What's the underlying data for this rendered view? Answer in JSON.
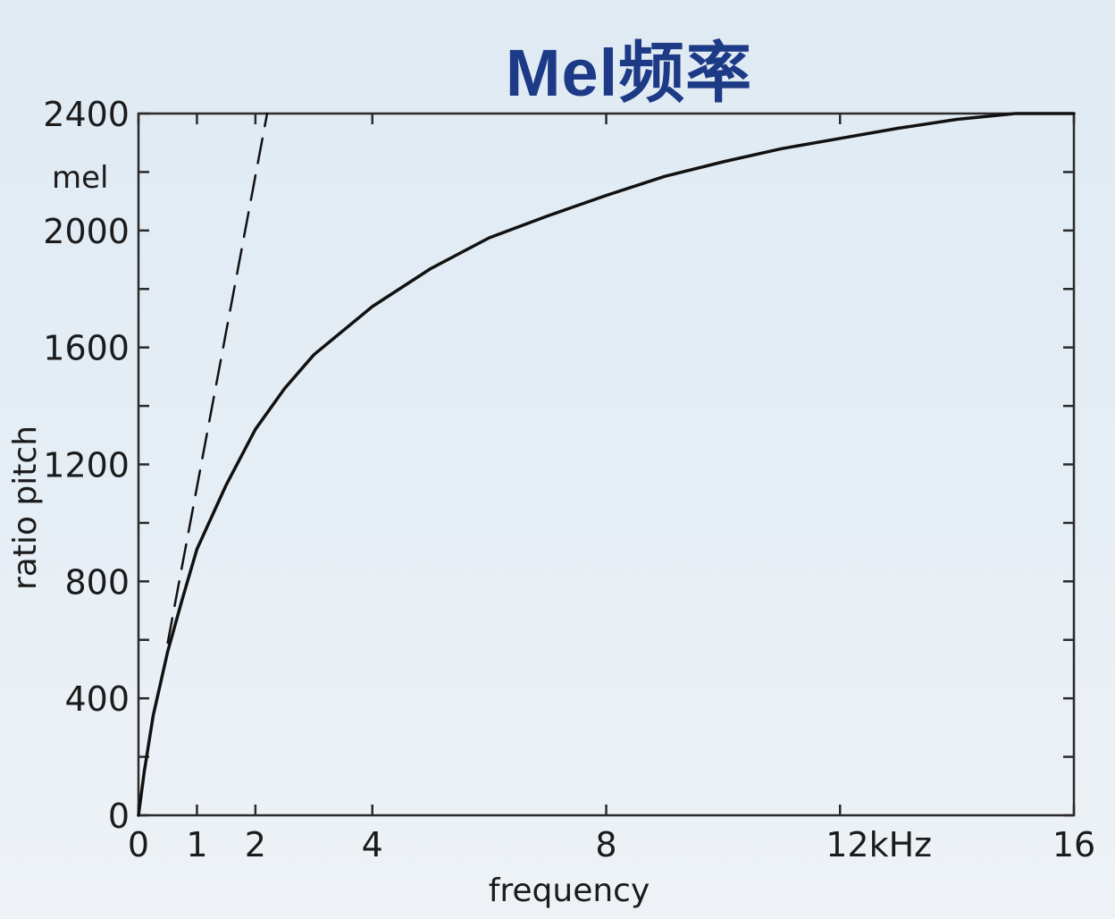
{
  "slide": {
    "title": "Mel频率"
  },
  "chart_data": {
    "type": "line",
    "xlabel": "frequency",
    "ylabel": "ratio pitch",
    "y_unit": "mel",
    "x_unit": "kHz",
    "xlim": [
      0,
      16
    ],
    "ylim": [
      0,
      2400
    ],
    "x_ticks": [
      {
        "value": 0,
        "label": "0"
      },
      {
        "value": 1,
        "label": "1"
      },
      {
        "value": 2,
        "label": "2"
      },
      {
        "value": 4,
        "label": "4"
      },
      {
        "value": 8,
        "label": "8"
      },
      {
        "value": 12,
        "label": "12kHz"
      },
      {
        "value": 16,
        "label": "16"
      }
    ],
    "y_ticks": [
      {
        "value": 0,
        "label": "0"
      },
      {
        "value": 400,
        "label": "400"
      },
      {
        "value": 800,
        "label": "800"
      },
      {
        "value": 1200,
        "label": "1200"
      },
      {
        "value": 1600,
        "label": "1600"
      },
      {
        "value": 2000,
        "label": "2000"
      },
      {
        "value": 2400,
        "label": "2400"
      }
    ],
    "series": [
      {
        "style": "solid",
        "x": [
          0,
          0.1,
          0.25,
          0.5,
          0.75,
          1,
          1.5,
          2,
          2.5,
          3,
          4,
          5,
          6,
          7,
          8,
          9,
          10,
          11,
          12,
          13,
          14,
          15,
          16
        ],
        "y": [
          0,
          150,
          340,
          560,
          740,
          910,
          1130,
          1320,
          1460,
          1575,
          1740,
          1870,
          1975,
          2050,
          2120,
          2185,
          2235,
          2280,
          2315,
          2350,
          2380,
          2400,
          2400
        ]
      },
      {
        "style": "dashed",
        "x": [
          0.5,
          2.2
        ],
        "y": [
          590,
          2400
        ]
      }
    ],
    "grid": false,
    "legend": "none"
  }
}
